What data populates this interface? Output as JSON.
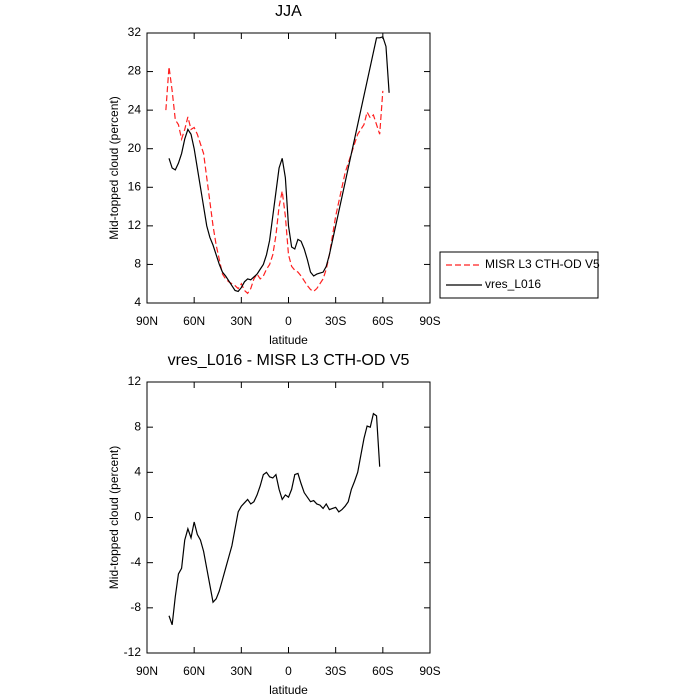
{
  "chart_data": [
    {
      "type": "line",
      "title": "JJA",
      "x_label": "latitude",
      "y_label": "Mid-topped cloud (percent)",
      "x": [
        78,
        76,
        74,
        72,
        70,
        68,
        66,
        64,
        62,
        60,
        58,
        56,
        54,
        52,
        50,
        48,
        46,
        44,
        42,
        40,
        38,
        36,
        34,
        32,
        30,
        28,
        26,
        24,
        22,
        20,
        18,
        16,
        14,
        12,
        10,
        8,
        6,
        4,
        2,
        0,
        -2,
        -4,
        -6,
        -8,
        -10,
        -12,
        -14,
        -16,
        -18,
        -20,
        -22,
        -24,
        -26,
        -28,
        -30,
        -32,
        -34,
        -36,
        -38,
        -40,
        -42,
        -44,
        -46,
        -48,
        -50,
        -52,
        -54,
        -56,
        -58,
        -60,
        -62,
        -64
      ],
      "series": [
        {
          "name": "MISR L3 CTH-OD V5",
          "color": "#ff2020",
          "dash": "dashed",
          "values": [
            24,
            28.5,
            26,
            23,
            22.5,
            21,
            22,
            23.3,
            22,
            22.2,
            21.5,
            20.5,
            19.5,
            17,
            14.5,
            12,
            10,
            8.5,
            7,
            6.5,
            6.2,
            6,
            5.8,
            5.5,
            6,
            5.3,
            5,
            5.5,
            6.5,
            7,
            6.5,
            6.8,
            7.5,
            8,
            9,
            11,
            14,
            15.6,
            13,
            9,
            7.8,
            7.4,
            7.2,
            6.8,
            6.3,
            5.8,
            5.4,
            5.2,
            5.5,
            6,
            6.5,
            7.5,
            9,
            11,
            13,
            14.5,
            16,
            17.5,
            18.5,
            19.5,
            20.5,
            21.5,
            22,
            22.5,
            23.8,
            23.2,
            23.5,
            22.5,
            21.5,
            26,
            null,
            null
          ]
        },
        {
          "name": "vres_L016",
          "color": "#000000",
          "dash": "solid",
          "values": [
            null,
            19,
            18,
            17.8,
            18.5,
            19.5,
            21,
            22,
            21.5,
            20,
            18,
            16,
            14,
            12,
            10.8,
            10,
            9,
            8,
            7.2,
            6.8,
            6.3,
            5.8,
            5.3,
            5.2,
            5.6,
            6.2,
            6.5,
            6.4,
            6.7,
            7,
            7.5,
            8,
            9,
            10.5,
            13,
            15.5,
            18,
            19,
            17,
            12,
            9.8,
            9.6,
            10.6,
            10.4,
            9.6,
            8.5,
            7.2,
            6.8,
            7,
            7.1,
            7.2,
            7.8,
            9,
            10.5,
            12,
            13.5,
            15,
            16.5,
            18,
            19.5,
            21,
            22.5,
            24,
            25.5,
            27,
            28.5,
            30,
            31.5,
            31.5,
            31.6,
            30.6,
            25.8
          ]
        }
      ],
      "xlim": [
        90,
        -90
      ],
      "xticks": [
        {
          "value": 90,
          "label": "90N"
        },
        {
          "value": 60,
          "label": "60N"
        },
        {
          "value": 30,
          "label": "30N"
        },
        0,
        {
          "value": -30,
          "label": "30S"
        },
        {
          "value": -60,
          "label": "60S"
        },
        {
          "value": -90,
          "label": "90S"
        }
      ],
      "ylim": [
        4,
        32
      ],
      "yticks": [
        4,
        8,
        12,
        16,
        20,
        24,
        28,
        32
      ],
      "legend": "outside right"
    },
    {
      "type": "line",
      "title": "vres_L016 - MISR L3 CTH-OD V5",
      "x_label": "latitude",
      "y_label": "Mid-topped cloud (percent)",
      "x": [
        76,
        74,
        72,
        70,
        68,
        66,
        64,
        62,
        60,
        58,
        56,
        54,
        52,
        50,
        48,
        46,
        44,
        42,
        40,
        38,
        36,
        34,
        32,
        30,
        28,
        26,
        24,
        22,
        20,
        18,
        16,
        14,
        12,
        10,
        8,
        6,
        4,
        2,
        0,
        -2,
        -4,
        -6,
        -8,
        -10,
        -12,
        -14,
        -16,
        -18,
        -20,
        -22,
        -24,
        -26,
        -28,
        -30,
        -32,
        -34,
        -36,
        -38,
        -40,
        -42,
        -44,
        -46,
        -48,
        -50,
        -52,
        -54,
        -56,
        -58
      ],
      "color": "#000000",
      "values": [
        -8.7,
        -9.5,
        -7,
        -5,
        -4.5,
        -2,
        -1,
        -1.8,
        -0.4,
        -1.5,
        -2,
        -3,
        -4.5,
        -6,
        -7.5,
        -7.2,
        -6.5,
        -5.5,
        -4.5,
        -3.5,
        -2.5,
        -1,
        0.5,
        1,
        1.3,
        1.6,
        1.2,
        1.4,
        2,
        2.8,
        3.8,
        4,
        3.6,
        3.5,
        3.8,
        2.5,
        1.6,
        2,
        1.8,
        2.5,
        3.8,
        3.9,
        3,
        2.2,
        1.8,
        1.4,
        1.5,
        1.2,
        1.1,
        0.8,
        1.2,
        0.7,
        0.8,
        0.9,
        0.5,
        0.7,
        1,
        1.4,
        2.5,
        3.2,
        4,
        5.5,
        7,
        8.1,
        8,
        9.2,
        9,
        4.5
      ],
      "xlim": [
        90,
        -90
      ],
      "xticks": [
        {
          "value": 90,
          "label": "90N"
        },
        {
          "value": 60,
          "label": "60N"
        },
        {
          "value": 30,
          "label": "30N"
        },
        0,
        {
          "value": -30,
          "label": "30S"
        },
        {
          "value": -60,
          "label": "60S"
        },
        {
          "value": -90,
          "label": "90S"
        }
      ],
      "ylim": [
        -12,
        12
      ],
      "yticks": [
        -12,
        -8,
        -4,
        0,
        4,
        8,
        12
      ]
    }
  ]
}
